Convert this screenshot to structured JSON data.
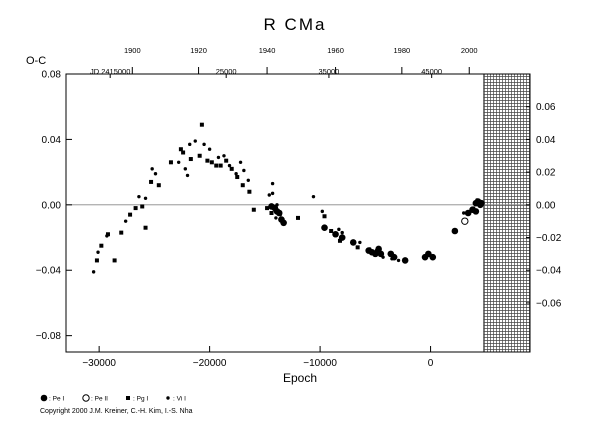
{
  "chart_data": {
    "type": "scatter",
    "title": "R  CMa",
    "xlabel": "Epoch",
    "ylabel": "O-C",
    "xlim": [
      -33000,
      9000
    ],
    "ylim": [
      -0.09,
      0.08
    ],
    "x_ticks": [
      -30000,
      -20000,
      -10000,
      0
    ],
    "x_tick_labels": [
      "−30000",
      "−20000",
      "−10000",
      "0"
    ],
    "y_ticks": [
      -0.08,
      -0.04,
      0.0,
      0.04,
      0.08
    ],
    "y_tick_labels": [
      "−0.08",
      "−0.04",
      "0.00",
      "0.04",
      "0.08"
    ],
    "right_ticks": [
      -0.06,
      -0.04,
      -0.02,
      0.0,
      0.02,
      0.04,
      0.06
    ],
    "right_tick_labels": [
      "−0.06",
      "−0.04",
      "−0.02",
      "0.00",
      "0.02",
      "0.04",
      "0.06"
    ],
    "top_year_ticks": [
      {
        "epoch": -27000,
        "label": "1900"
      },
      {
        "epoch": -21000,
        "label": "1920"
      },
      {
        "epoch": -14800,
        "label": "1940"
      },
      {
        "epoch": -8600,
        "label": "1960"
      },
      {
        "epoch": -2600,
        "label": "1980"
      },
      {
        "epoch": 3500,
        "label": "2000"
      }
    ],
    "jd_labels": [
      {
        "epoch": -29000,
        "label": "JD  2415000"
      },
      {
        "epoch": -18500,
        "label": "25000"
      },
      {
        "epoch": -9200,
        "label": "35000"
      },
      {
        "epoch": 100,
        "label": "45000"
      }
    ],
    "zero_line": 0.0,
    "hatched_region_epoch": [
      4800,
      9000
    ],
    "series": [
      {
        "name": "Pe I",
        "marker": "filled-circle-large",
        "points": [
          [
            -14400,
            -0.001
          ],
          [
            -14100,
            -0.002
          ],
          [
            -13900,
            -0.004
          ],
          [
            -13700,
            -0.005
          ],
          [
            -13500,
            -0.009
          ],
          [
            -13300,
            -0.011
          ],
          [
            -9600,
            -0.014
          ],
          [
            -8600,
            -0.018
          ],
          [
            -8000,
            -0.02
          ],
          [
            -7000,
            -0.023
          ],
          [
            -5600,
            -0.028
          ],
          [
            -5300,
            -0.029
          ],
          [
            -5000,
            -0.03
          ],
          [
            -4700,
            -0.027
          ],
          [
            -4500,
            -0.03
          ],
          [
            -3600,
            -0.03
          ],
          [
            -3300,
            -0.032
          ],
          [
            -2300,
            -0.034
          ],
          [
            -500,
            -0.032
          ],
          [
            -200,
            -0.03
          ],
          [
            200,
            -0.032
          ],
          [
            2200,
            -0.016
          ],
          [
            3400,
            -0.005
          ],
          [
            3800,
            -0.003
          ],
          [
            4100,
            0.001
          ],
          [
            4300,
            0.002
          ],
          [
            4500,
            0.0
          ],
          [
            4100,
            -0.004
          ],
          [
            4600,
            0.001
          ]
        ]
      },
      {
        "name": "Pe II",
        "marker": "open-circle",
        "points": [
          [
            3100,
            -0.01
          ]
        ]
      },
      {
        "name": "Pg I",
        "marker": "filled-square",
        "points": [
          [
            -30200,
            -0.034
          ],
          [
            -29800,
            -0.025
          ],
          [
            -29200,
            -0.018
          ],
          [
            -28600,
            -0.034
          ],
          [
            -28000,
            -0.017
          ],
          [
            -27200,
            -0.006
          ],
          [
            -26700,
            -0.002
          ],
          [
            -26100,
            -0.001
          ],
          [
            -25800,
            -0.014
          ],
          [
            -25300,
            0.014
          ],
          [
            -24600,
            0.012
          ],
          [
            -23500,
            0.026
          ],
          [
            -22600,
            0.034
          ],
          [
            -22400,
            0.032
          ],
          [
            -21700,
            0.028
          ],
          [
            -20900,
            0.03
          ],
          [
            -20700,
            0.049
          ],
          [
            -20200,
            0.027
          ],
          [
            -19800,
            0.026
          ],
          [
            -19400,
            0.024
          ],
          [
            -19000,
            0.024
          ],
          [
            -18500,
            0.027
          ],
          [
            -18000,
            0.022
          ],
          [
            -17500,
            0.017
          ],
          [
            -17000,
            0.012
          ],
          [
            -16400,
            0.008
          ],
          [
            -16000,
            -0.003
          ],
          [
            -14800,
            -0.002
          ],
          [
            -14400,
            -0.005
          ],
          [
            -12000,
            -0.008
          ],
          [
            -9600,
            -0.007
          ],
          [
            -9000,
            -0.016
          ],
          [
            -8200,
            -0.022
          ],
          [
            -6600,
            -0.026
          ]
        ]
      },
      {
        "name": "Vi I",
        "marker": "small-dot",
        "points": [
          [
            -30500,
            -0.041
          ],
          [
            -30100,
            -0.029
          ],
          [
            -29300,
            -0.019
          ],
          [
            -27600,
            -0.01
          ],
          [
            -26400,
            0.005
          ],
          [
            -25800,
            0.004
          ],
          [
            -24900,
            0.019
          ],
          [
            -25200,
            0.022
          ],
          [
            -22800,
            0.026
          ],
          [
            -22200,
            0.022
          ],
          [
            -22000,
            0.018
          ],
          [
            -21800,
            0.037
          ],
          [
            -21300,
            0.039
          ],
          [
            -20500,
            0.037
          ],
          [
            -20000,
            0.034
          ],
          [
            -19200,
            0.029
          ],
          [
            -18700,
            0.03
          ],
          [
            -18200,
            0.024
          ],
          [
            -17600,
            0.019
          ],
          [
            -17200,
            0.026
          ],
          [
            -16900,
            0.021
          ],
          [
            -16500,
            0.015
          ],
          [
            -14600,
            0.006
          ],
          [
            -14300,
            0.013
          ],
          [
            -14300,
            0.007
          ],
          [
            -13900,
            0.0
          ],
          [
            -13600,
            -0.006
          ],
          [
            -14000,
            -0.008
          ],
          [
            -10600,
            0.005
          ],
          [
            -9800,
            -0.004
          ],
          [
            -8300,
            -0.015
          ],
          [
            -8000,
            -0.017
          ],
          [
            -6400,
            -0.023
          ],
          [
            -5500,
            -0.027
          ],
          [
            -4900,
            -0.028
          ],
          [
            -4300,
            -0.032
          ],
          [
            -3500,
            -0.033
          ],
          [
            -2900,
            -0.034
          ],
          [
            -400,
            -0.031
          ],
          [
            3000,
            -0.005
          ],
          [
            3900,
            -0.002
          ],
          [
            4200,
            0.003
          ]
        ]
      }
    ],
    "legend": [
      {
        "marker": "filled-circle-large",
        "label": ": Pe I"
      },
      {
        "marker": "open-circle",
        "label": ": Pe II"
      },
      {
        "marker": "filled-square",
        "label": ": Pg I"
      },
      {
        "marker": "small-dot",
        "label": ": Vi I"
      }
    ],
    "copyright": "Copyright 2000 J.M. Kreiner, C.-H. Kim, I.-S. Nha"
  }
}
